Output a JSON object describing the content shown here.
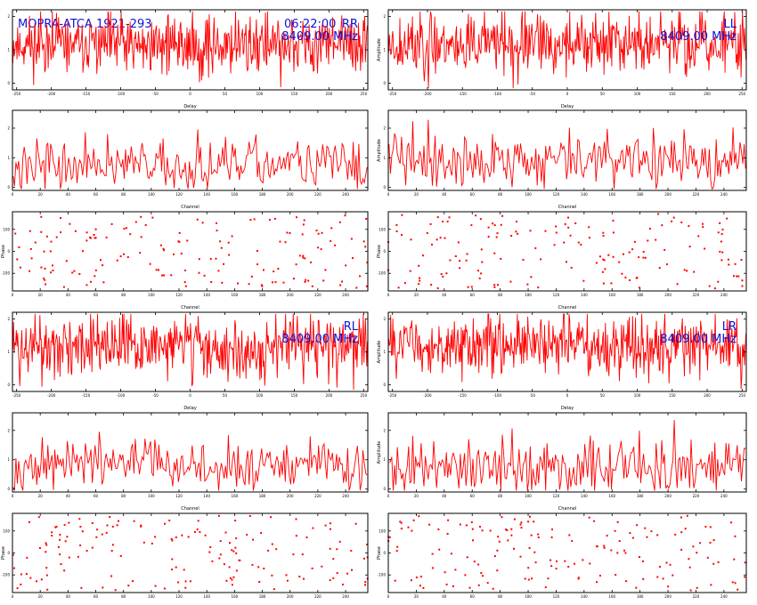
{
  "header": {
    "source_label": "MOPRA-ATCA 1921-293",
    "time": "06:22:00"
  },
  "colors": {
    "trace": "#ff0000",
    "annotation": "#1010d8",
    "frame": "#000000"
  },
  "chart_data": [
    {
      "type": "line",
      "row": 0,
      "col": 0,
      "kind": "delay",
      "polarization": "RR",
      "frequency": "8409.00 MHz",
      "xlabel": "Delay",
      "ylabel": "",
      "x_ticks": [
        -250,
        -200,
        -150,
        -100,
        -50,
        0,
        50,
        100,
        150,
        200,
        250
      ],
      "xlim": [
        -256,
        256
      ],
      "y_ticks": [
        0,
        1,
        2
      ],
      "ylim": [
        -0.2,
        2.2
      ],
      "baseline": 1.15,
      "spread": 0.55,
      "samples": 512,
      "seed": 11
    },
    {
      "type": "line",
      "row": 0,
      "col": 1,
      "kind": "delay",
      "polarization": "LL",
      "frequency": "8409.00 MHz",
      "xlabel": "Delay",
      "ylabel": "Amplitude",
      "x_ticks": [
        -250,
        -200,
        -150,
        -100,
        -50,
        0,
        50,
        100,
        150,
        200,
        250
      ],
      "xlim": [
        -256,
        256
      ],
      "y_ticks": [
        0,
        1,
        2
      ],
      "ylim": [
        -0.2,
        2.2
      ],
      "baseline": 1.2,
      "spread": 0.55,
      "samples": 512,
      "seed": 23
    },
    {
      "type": "line",
      "row": 1,
      "col": 0,
      "kind": "channel",
      "polarization": "RR",
      "frequency": "",
      "xlabel": "Channel",
      "ylabel": "",
      "x_ticks": [
        0,
        20,
        40,
        60,
        80,
        100,
        120,
        140,
        160,
        180,
        200,
        220,
        240
      ],
      "xlim": [
        0,
        256
      ],
      "y_ticks": [
        0,
        1,
        2
      ],
      "ylim": [
        -0.1,
        2.6
      ],
      "baseline": 0.75,
      "spread": 0.5,
      "samples": 256,
      "seed": 37
    },
    {
      "type": "line",
      "row": 1,
      "col": 1,
      "kind": "channel",
      "polarization": "LL",
      "frequency": "",
      "xlabel": "Channel",
      "ylabel": "Amplitude",
      "x_ticks": [
        0,
        20,
        40,
        60,
        80,
        100,
        120,
        140,
        160,
        180,
        200,
        220,
        240
      ],
      "xlim": [
        0,
        256
      ],
      "y_ticks": [
        0,
        1,
        2
      ],
      "ylim": [
        -0.1,
        2.6
      ],
      "baseline": 0.9,
      "spread": 0.55,
      "samples": 256,
      "seed": 41
    },
    {
      "type": "scatter",
      "row": 2,
      "col": 0,
      "kind": "phase",
      "polarization": "RR",
      "frequency": "",
      "xlabel": "Channel",
      "ylabel": "Phase",
      "x_ticks": [
        0,
        20,
        40,
        60,
        80,
        100,
        120,
        140,
        160,
        180,
        200,
        220,
        240
      ],
      "xlim": [
        0,
        256
      ],
      "y_ticks": [
        -100,
        0,
        100
      ],
      "ylim": [
        -180,
        180
      ],
      "samples": 160,
      "seed": 53
    },
    {
      "type": "scatter",
      "row": 2,
      "col": 1,
      "kind": "phase",
      "polarization": "LL",
      "frequency": "",
      "xlabel": "Channel",
      "ylabel": "Phase",
      "x_ticks": [
        0,
        20,
        40,
        60,
        80,
        100,
        120,
        140,
        160,
        180,
        200,
        220,
        240
      ],
      "xlim": [
        0,
        256
      ],
      "y_ticks": [
        -100,
        0,
        100
      ],
      "ylim": [
        -180,
        180
      ],
      "samples": 160,
      "seed": 67
    },
    {
      "type": "line",
      "row": 3,
      "col": 0,
      "kind": "delay",
      "polarization": "RL",
      "frequency": "8409.00 MHz",
      "xlabel": "Delay",
      "ylabel": "",
      "x_ticks": [
        -250,
        -200,
        -150,
        -100,
        -50,
        0,
        50,
        100,
        150,
        200,
        250
      ],
      "xlim": [
        -256,
        256
      ],
      "y_ticks": [
        0,
        1,
        2
      ],
      "ylim": [
        -0.2,
        2.2
      ],
      "baseline": 1.15,
      "spread": 0.55,
      "samples": 512,
      "seed": 71
    },
    {
      "type": "line",
      "row": 3,
      "col": 1,
      "kind": "delay",
      "polarization": "LR",
      "frequency": "8409.00 MHz",
      "xlabel": "Delay",
      "ylabel": "Amplitude",
      "x_ticks": [
        -250,
        -200,
        -150,
        -100,
        -50,
        0,
        50,
        100,
        150,
        200,
        250
      ],
      "xlim": [
        -256,
        256
      ],
      "y_ticks": [
        0,
        1,
        2
      ],
      "ylim": [
        -0.2,
        2.2
      ],
      "baseline": 1.2,
      "spread": 0.55,
      "samples": 512,
      "seed": 83
    },
    {
      "type": "line",
      "row": 4,
      "col": 0,
      "kind": "channel",
      "polarization": "RL",
      "frequency": "",
      "xlabel": "Channel",
      "ylabel": "",
      "x_ticks": [
        0,
        20,
        40,
        60,
        80,
        100,
        120,
        140,
        160,
        180,
        200,
        220,
        240
      ],
      "xlim": [
        0,
        256
      ],
      "y_ticks": [
        0,
        1,
        2
      ],
      "ylim": [
        -0.1,
        2.6
      ],
      "baseline": 0.8,
      "spread": 0.5,
      "samples": 256,
      "seed": 97
    },
    {
      "type": "line",
      "row": 4,
      "col": 1,
      "kind": "channel",
      "polarization": "LR",
      "frequency": "",
      "xlabel": "Channel",
      "ylabel": "Amplitude",
      "x_ticks": [
        0,
        20,
        40,
        60,
        80,
        100,
        120,
        140,
        160,
        180,
        200,
        220,
        240
      ],
      "xlim": [
        0,
        256
      ],
      "y_ticks": [
        0,
        1,
        2
      ],
      "ylim": [
        -0.1,
        2.6
      ],
      "baseline": 0.75,
      "spread": 0.55,
      "samples": 256,
      "seed": 101
    },
    {
      "type": "scatter",
      "row": 5,
      "col": 0,
      "kind": "phase",
      "polarization": "RL",
      "frequency": "",
      "xlabel": "Channel",
      "ylabel": "Phase",
      "x_ticks": [
        0,
        20,
        40,
        60,
        80,
        100,
        120,
        140,
        160,
        180,
        200,
        220,
        240
      ],
      "xlim": [
        0,
        256
      ],
      "y_ticks": [
        -100,
        0,
        100
      ],
      "ylim": [
        -180,
        180
      ],
      "samples": 160,
      "seed": 113
    },
    {
      "type": "scatter",
      "row": 5,
      "col": 1,
      "kind": "phase",
      "polarization": "LR",
      "frequency": "",
      "xlabel": "Channel",
      "ylabel": "Phase",
      "x_ticks": [
        0,
        20,
        40,
        60,
        80,
        100,
        120,
        140,
        160,
        180,
        200,
        220,
        240
      ],
      "xlim": [
        0,
        256
      ],
      "y_ticks": [
        -100,
        0,
        100
      ],
      "ylim": [
        -180,
        180
      ],
      "samples": 160,
      "seed": 127
    }
  ]
}
